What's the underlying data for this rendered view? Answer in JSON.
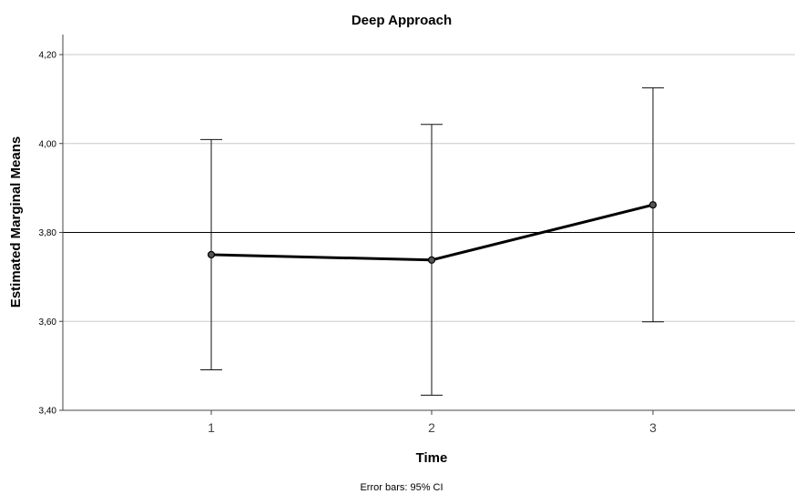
{
  "chart_data": {
    "type": "line",
    "title": "Deep Approach",
    "xlabel": "Time",
    "ylabel": "Estimated Marginal Means",
    "categories": [
      "1",
      "2",
      "3"
    ],
    "series": [
      {
        "values": [
          3.75,
          3.738,
          3.862
        ],
        "ci_lower": [
          3.491,
          3.434,
          3.599
        ],
        "ci_upper": [
          4.009,
          4.043,
          4.125
        ]
      }
    ],
    "ylim": [
      3.4,
      4.2
    ],
    "yticks": [
      "4,20",
      "4,00",
      "3,80",
      "3,60",
      "3,40"
    ],
    "ytick_values": [
      4.2,
      4.0,
      3.8,
      3.6,
      3.4
    ],
    "reference_line": 3.8,
    "grid": true,
    "note": "Error bars: 95% CI",
    "colors": {
      "line": "#000000",
      "grid": "#c8c8c8",
      "axis": "#444444"
    }
  }
}
